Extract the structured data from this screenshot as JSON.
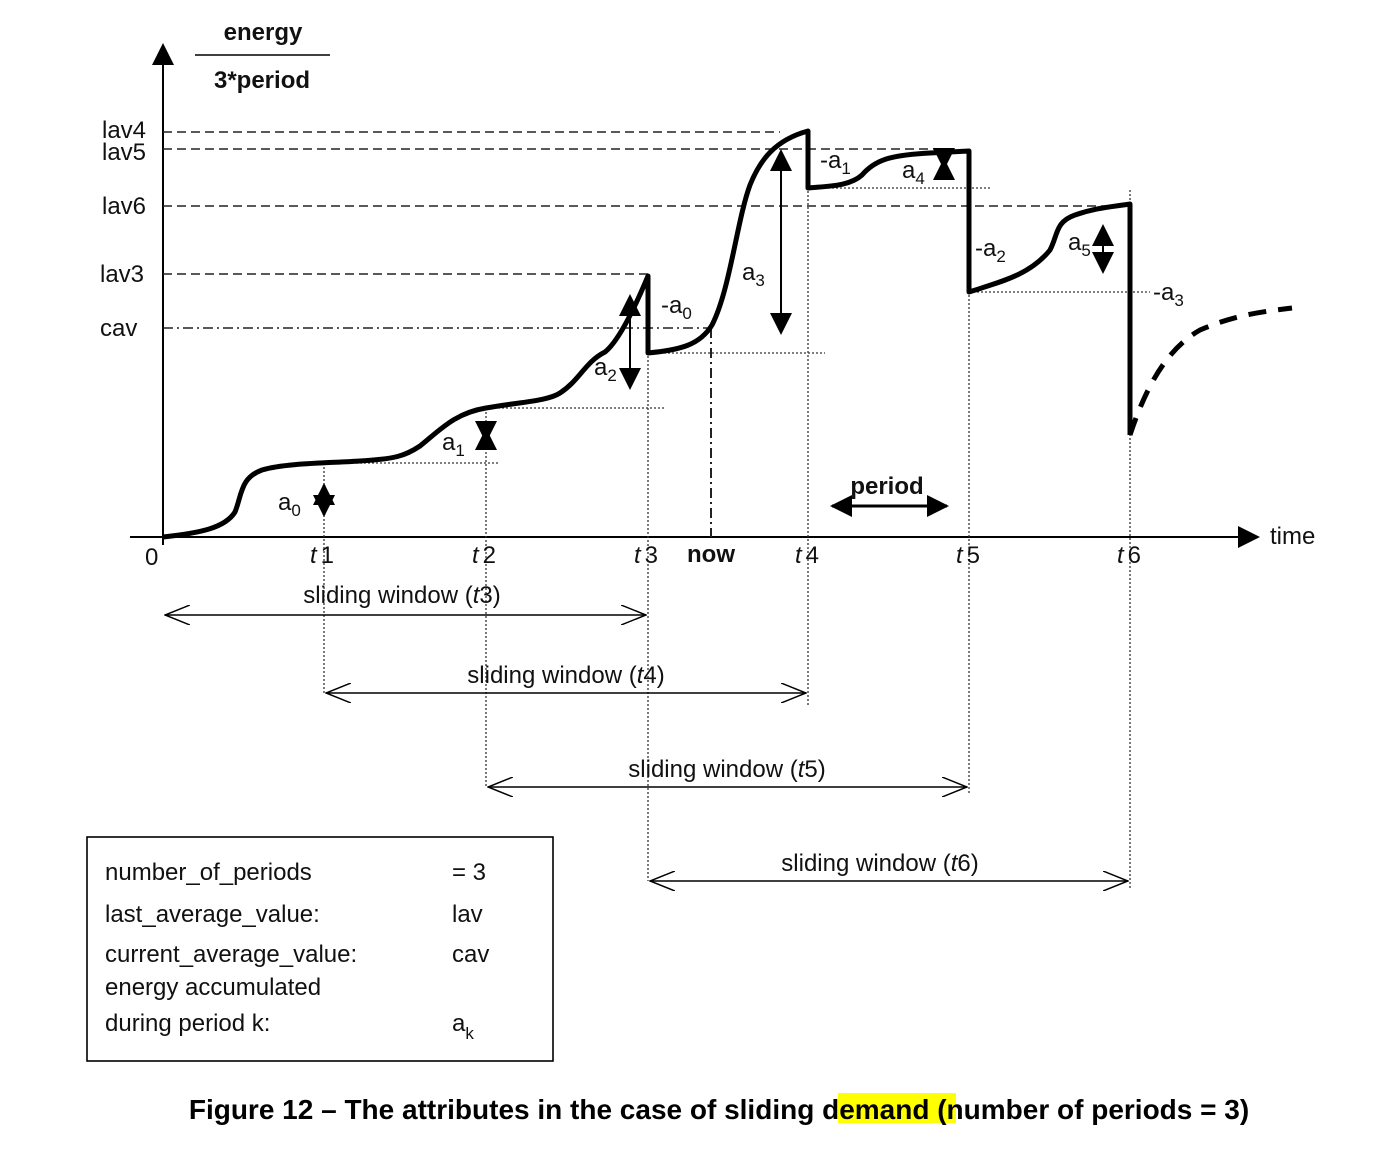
{
  "y_axis": {
    "title_top": "energy",
    "title_bottom": "3*period"
  },
  "x_axis": {
    "label": "time",
    "origin": "0"
  },
  "levels": [
    "lav4",
    "lav5",
    "lav6",
    "lav3",
    "cav"
  ],
  "ticks": [
    {
      "italic": "t",
      "num": "1"
    },
    {
      "italic": "t",
      "num": "2"
    },
    {
      "italic": "t",
      "num": "3"
    },
    {
      "italic": "t",
      "num": "4"
    },
    {
      "italic": "t",
      "num": "5"
    },
    {
      "italic": "t",
      "num": "6"
    }
  ],
  "now": "now",
  "period": "period",
  "amounts": [
    {
      "base": "a",
      "sub": "0"
    },
    {
      "base": "a",
      "sub": "1"
    },
    {
      "base": "a",
      "sub": "2"
    },
    {
      "base": "a",
      "sub": "3"
    },
    {
      "base": "a",
      "sub": "4"
    },
    {
      "base": "a",
      "sub": "5"
    }
  ],
  "negatives": [
    {
      "base": "-a",
      "sub": "0"
    },
    {
      "base": "-a",
      "sub": "1"
    },
    {
      "base": "-a",
      "sub": "2"
    },
    {
      "base": "-a",
      "sub": "3"
    }
  ],
  "windows": [
    {
      "pre": "sliding window (",
      "t": "t",
      "num": "3",
      "post": ")"
    },
    {
      "pre": "sliding window (",
      "t": "t",
      "num": "4",
      "post": ")"
    },
    {
      "pre": "sliding window (",
      "t": "t",
      "num": "5",
      "post": ")"
    },
    {
      "pre": "sliding window (",
      "t": "t",
      "num": "6",
      "post": ")"
    }
  ],
  "legend": {
    "rows": [
      {
        "key": "number_of_periods",
        "value": "= 3"
      },
      {
        "key": "last_average_value:",
        "value": "lav"
      },
      {
        "key": "current_average_value:",
        "value": "cav"
      },
      {
        "key": "energy accumulated",
        "value": ""
      },
      {
        "key": "during period k:",
        "value": "a",
        "value_sub": "k"
      }
    ]
  },
  "caption": {
    "before": "Figure 12 – The attributes in the case of sliding ",
    "highlight": "demand",
    "after": " (number of periods = 3)",
    "highlight_color": "#ffff00"
  }
}
